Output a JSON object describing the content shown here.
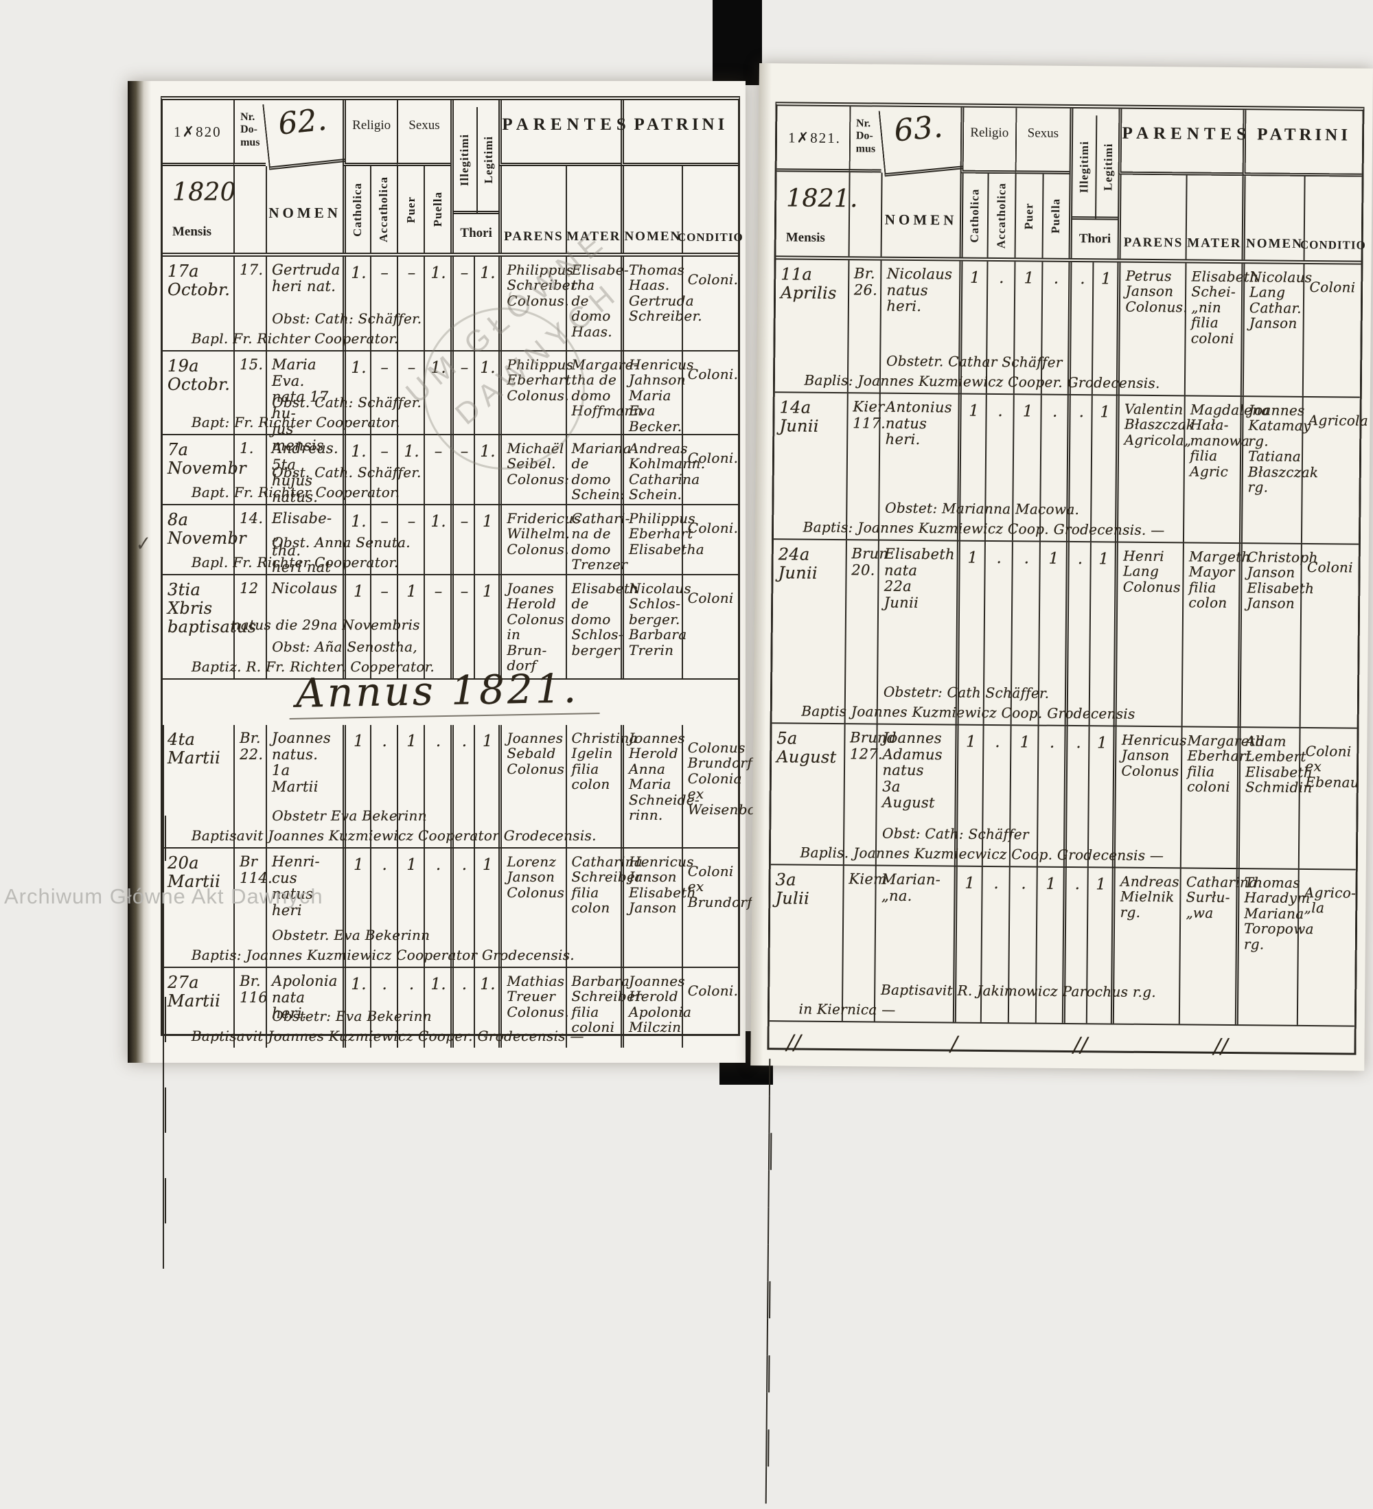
{
  "labels": {
    "nr_domus": "Nr.\nDo-\nmus",
    "nomen": "NOMEN",
    "religio": "Religio",
    "sexus": "Sexus",
    "catholica": "Catholica",
    "accatholica": "Accatholica",
    "puer": "Puer",
    "puella": "Puella",
    "illegitimi": "Illegitimi",
    "legitimi": "Legitimi",
    "thori": "Thori",
    "parentes": "PARENTES",
    "patrini": "PATRINI",
    "parens": "PARENS",
    "mater": "MATER",
    "patrini_nomen": "NOMEN",
    "conditio": "CONDITIO",
    "mensis": "Mensis"
  },
  "watermarks": {
    "diag_line1": "UM GŁÓWNE",
    "diag_line2": "DAWNYCH",
    "bottom": "Archiwum Główne Akt Dawnych",
    "check": "✓"
  },
  "left_page": {
    "printed_year": "1✗820",
    "hand_year": "1820",
    "house_no": "62.",
    "year_heading": "Annus 1821.",
    "rows_a": [
      {
        "date": "17a\nOctobr.",
        "nr": "17.",
        "nomen": "Gertruda\nheri nat.",
        "marks": [
          "1.",
          "–",
          "–",
          "1.",
          "–",
          "1."
        ],
        "parens": "Philippus\nSchreiber\nColonus.",
        "mater": "Elisabe-\ntha\nde domo\nHaas.",
        "patrini": "Thomas\nHaas.\nGertruda\nSchreiber.",
        "conditio": "Coloni.",
        "note0": "",
        "note1": "Obst: Cath: Schäffer.",
        "note2": "Bapl. Fr. Richter Cooperator."
      },
      {
        "date": "19a\nOctobr.",
        "nr": "15.",
        "nomen": "Maria\nEva.\nnata 17 hu-\njus mensis",
        "marks": [
          "1.",
          "–",
          "–",
          "1.",
          "–",
          "1."
        ],
        "parens": "Philippus\nEberhart\nColonus.",
        "mater": "Margare-\ntha de\ndomo\nHoffmann",
        "patrini": "Henricus\nJahnson\nMaria Eva\nBecker.",
        "conditio": "Coloni.",
        "note0": "",
        "note1": "Obst. Cath: Schäffer.",
        "note2": "Bapt: Fr. Richter Cooperator."
      },
      {
        "date": "7a\nNovembr",
        "nr": "1.",
        "nomen": "Andreas.\n5ta hujus\nnatus.",
        "marks": [
          "1.",
          "–",
          "1.",
          "–",
          "–",
          "1."
        ],
        "parens": "Michaël\nSeibel.\nColonus:",
        "mater": "Mariana\nde domo\nSchein:",
        "patrini": "Andreas\nKohlmann.\nCatharina\nSchein.",
        "conditio": "Coloni.",
        "note0": "",
        "note1": "Obst. Cath. Schäffer.",
        "note2": "Bapt. Fr. Richter Cooperator."
      },
      {
        "date": "8a\nNovembr",
        "nr": "14.",
        "nomen": "Elisabe-„\ntha.\nheri nat",
        "marks": [
          "1.",
          "–",
          "–",
          "1.",
          "–",
          "1"
        ],
        "parens": "Fridericus\nWilhelm.\nColonus.",
        "mater": "Cathari-\nna de\ndomo\nTrenzer",
        "patrini": "Philippus\nEberhart\nElisabetha",
        "conditio": "Coloni.",
        "note0": "",
        "note1": "Obst. Anna Senuta.",
        "note2": "Bapl. Fr. Richter Cooperator."
      },
      {
        "date": "3tia\nXbris\nbaptisatus",
        "nr": "12",
        "nomen": "Nicolaus",
        "marks": [
          "1",
          "–",
          "1",
          "–",
          "–",
          "1"
        ],
        "parens": "Joanes\nHerold\nColonus\nin Brun-\ndorf",
        "mater": "Elisabeth\nde domo\nSchlos-\nberger",
        "patrini": "Nicolaus\nSchlos-\nberger.\nBarbara\nTrerin",
        "conditio": "Coloni",
        "note0": "natus die 29na Novembris",
        "note1": "Obst:  Aña Senostha,",
        "note2": "Baptiz. R. Fr. Richter. Cooperator."
      }
    ],
    "rows_b": [
      {
        "date": "4ta\nMartii",
        "nr": "Br.\n22.",
        "nomen": "Joannes\nnatus.\n1a Martii",
        "marks": [
          "1",
          ".",
          "1",
          ".",
          ".",
          "1"
        ],
        "parens": "Joannes\nSebald\nColonus",
        "mater": "Christina\nIgelin\nfilia colon",
        "patrini": "Joannes\nHerold\nAnna Maria\nSchneide-\nrinn.",
        "conditio": "Colonus\nBrundorf\nColonia ex\nWeisenborn",
        "note0": "",
        "note1": "Obstetr  Eva  Bekerinn",
        "note2": "Baptisavit  Joannes  Kuzmiewicz  Cooperator  Grodecensis."
      },
      {
        "date": "20a\nMartii",
        "nr": "Br\n114.",
        "nomen": "Henri-\ncus\nnatus\nheri",
        "marks": [
          "1",
          ".",
          "1",
          ".",
          ".",
          "1"
        ],
        "parens": "Lorenz\nJanson\nColonus",
        "mater": "Catharina\nSchreiber\nfilia colon",
        "patrini": "Henricus\nJanson\nElisabeth\nJanson",
        "conditio": "Coloni\nex\nBrundorf",
        "note0": "",
        "note1": "Obstetr.  Eva  Bekerinn",
        "note2": "Baptis:  Joannes  Kuzmiewicz  Cooperator  Grodecensis."
      },
      {
        "date": "27a\nMartii",
        "nr": "Br.\n116",
        "nomen": "Apolonia\nnata\nheri.",
        "marks": [
          "1.",
          ".",
          ".",
          "1.",
          ".",
          "1."
        ],
        "parens": "Mathias\nTreuer\nColonus.",
        "mater": "Barbara\nSchreiber\nfilia coloni",
        "patrini": "Joannes\nHerold\nApolonia\nMilczin",
        "conditio": "Coloni.",
        "note0": "",
        "note1": "Obstetr:  Eva  Bekerinn",
        "note2": "Baptisavit  Joannes  Kuzmiewicz  Cooper.  Grodecensis —"
      }
    ]
  },
  "right_page": {
    "printed_year": "1✗821.",
    "hand_year": "1821.",
    "house_no": "63.",
    "tally": [
      "∕∕",
      "∕",
      "∕∕",
      "∕∕"
    ],
    "rows": [
      {
        "date": "11a\nAprilis",
        "nr": "Br.\n26.",
        "nomen": "Nicolaus\nnatus\nheri.",
        "marks": [
          "1",
          ".",
          "1",
          ".",
          ".",
          "1"
        ],
        "parens": "Petrus\nJanson\nColonus.",
        "mater": "Elisabeth\nSchei-\n„nin\nfilia coloni",
        "patrini": "Nicolaus\nLang\nCathar.\nJanson",
        "conditio": "Coloni",
        "note0": "",
        "note1": "Obstetr.  Cathar  Schäffer",
        "note2": "Baplis:  Joannes  Kuzmiewicz  Cooper.  Grodecensis."
      },
      {
        "date": "14a\nJunii",
        "nr": "Kier\n117.",
        "nomen": "Antonius\nnatus\nheri.",
        "marks": [
          "1",
          ".",
          "1",
          ".",
          ".",
          "1"
        ],
        "parens": "Valentin\nBłaszczak\nAgricola„",
        "mater": "Magdalena\nHała-\nmanowa\nfilia Agric",
        "patrini": "Joannes\nKatamay\nrg.\nTatiana\nBłaszczak\nrg.",
        "conditio": "Agricola",
        "note0": "",
        "note1": "Obstet:  Marianna  Macowa.",
        "note2": "Baptis:  Joannes  Kuzmiewicz  Coop.  Grodecensis. —"
      },
      {
        "date": "24a\nJunii",
        "nr": "Brun\n20.",
        "nomen": "Elisabeth\nnata\n22a\nJunii",
        "marks": [
          "1",
          ".",
          ".",
          "1",
          ".",
          "1"
        ],
        "parens": "Henri\nLang\nColonus",
        "mater": "Margeth\nMayor\nfilia colon",
        "patrini": "Christoph\nJanson\nElisabeth\nJanson",
        "conditio": "Coloni",
        "note0": "",
        "note1": "Obstetr: Cath  Schäffer.",
        "note2": "Baptis  Joannes  Kuzmiewicz  Coop.  Grodecensis"
      },
      {
        "date": "5a\nAugust",
        "nr": "Brund\n127.",
        "nomen": "Joannes\nAdamus\nnatus\n3a August",
        "marks": [
          "1",
          ".",
          "1",
          ".",
          ".",
          "1"
        ],
        "parens": "Henricus\nJanson\nColonus",
        "mater": "Margareth\nEberhart\nfilia coloni",
        "patrini": "Adam\nLembert\nElisabeth\nSchmidin",
        "conditio": "Coloni\nex\nEbenau",
        "note0": "",
        "note1": "Obst:  Cath:  Schäffer",
        "note2": "Baplis.  Joannes  Kuzmiecwicz  Coop.  Grodecensis —"
      },
      {
        "date": "3a\nJulii",
        "nr": "Kiem",
        "nomen": "Marian-\n„na.",
        "marks": [
          "1",
          ".",
          ".",
          "1",
          ".",
          "1"
        ],
        "parens": "Andreas\nMielnik\nrg.",
        "mater": "Catharina\nSurłu-\n„wa",
        "patrini": "Thomas\nHaradym\nMariana\nToropowa\nrg.",
        "conditio": "Agrico-\n„la",
        "note0": "",
        "note1": "Baptisavit  R.  Jakimowicz  Parochus  r.g.",
        "note2": "in  Kiernica  —"
      }
    ]
  }
}
